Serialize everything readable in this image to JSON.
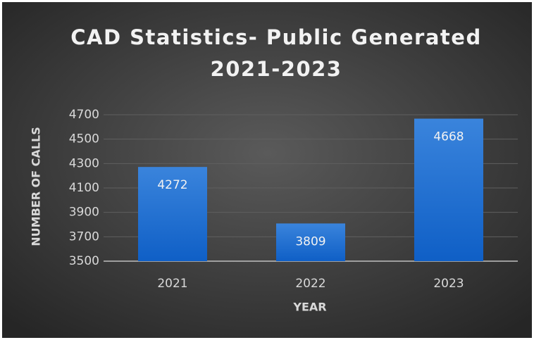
{
  "chart_data": {
    "type": "bar",
    "title": [
      "CAD Statistics- Public Generated",
      "2021-2023"
    ],
    "x_label": "YEAR",
    "y_label": "NUMBER OF CALLS",
    "categories": [
      "2021",
      "2022",
      "2023"
    ],
    "values": [
      4272,
      3809,
      4668
    ],
    "color": "#2a73d4",
    "ylim": [
      3500,
      4700
    ],
    "yticks": [
      3500,
      3700,
      3900,
      4100,
      4300,
      4500,
      4700
    ],
    "grid": true
  }
}
